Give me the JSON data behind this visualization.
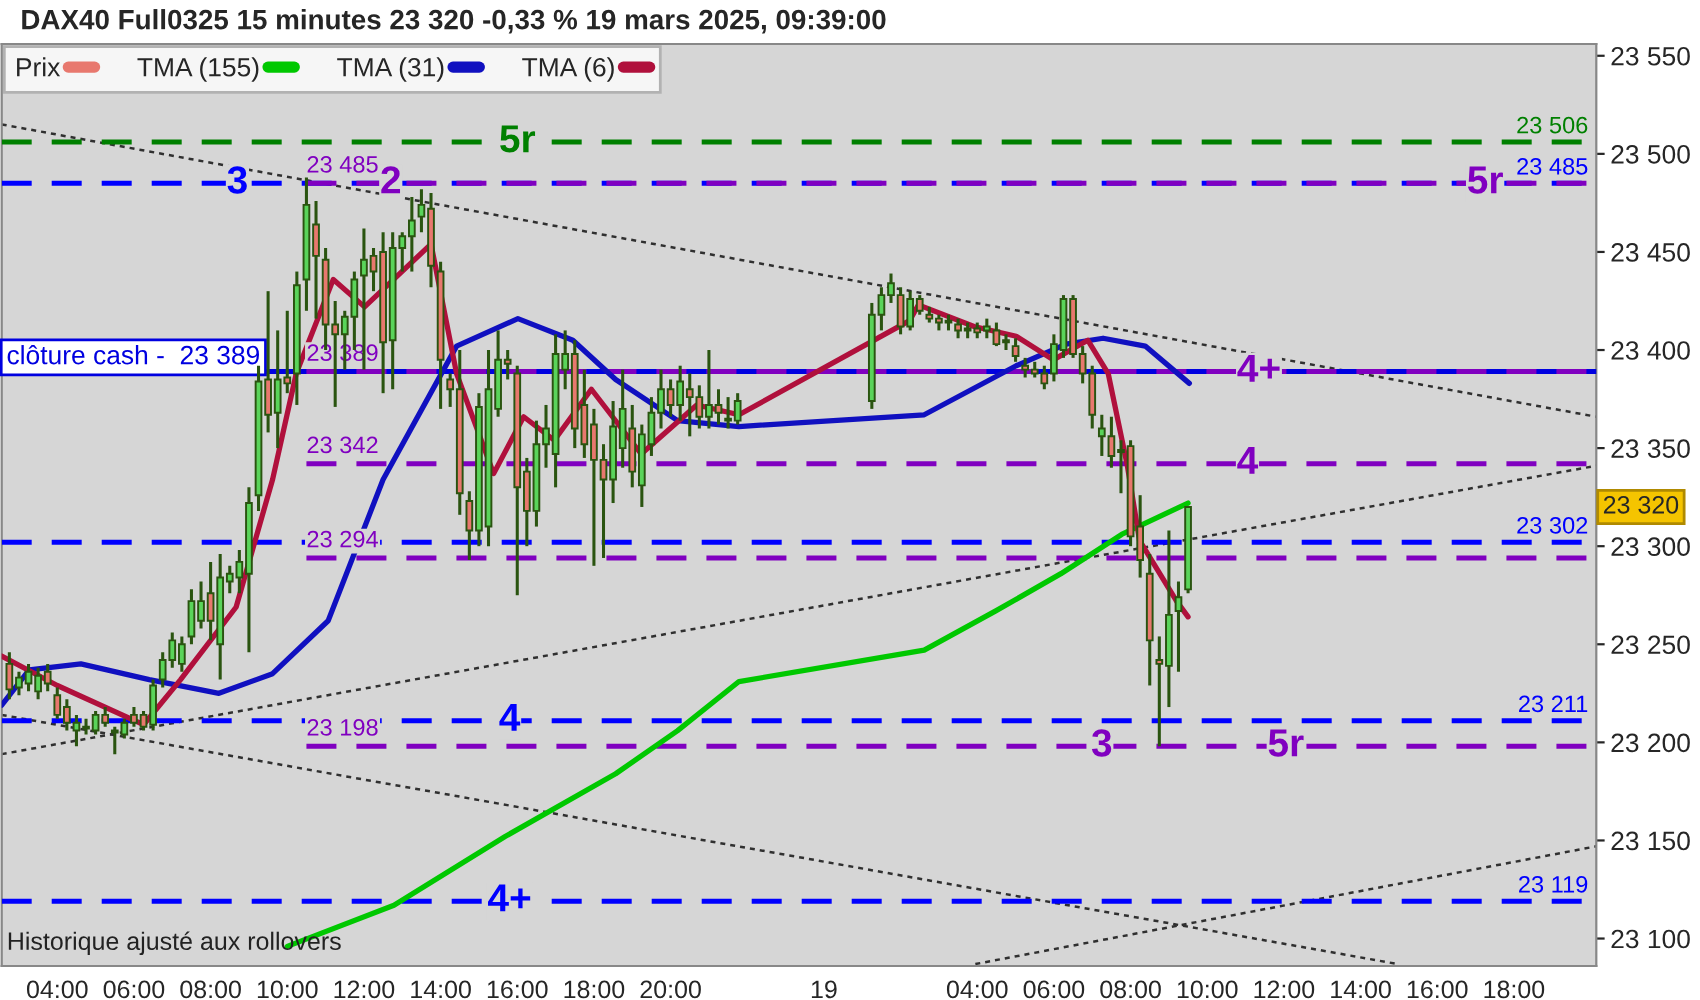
{
  "chart_data": {
    "type": "candlestick",
    "title": "DAX40 Full0325 15 minutes 23 320 -0,33 % 19 mars 2025, 09:39:00",
    "xlim": [
      "2025-03-18T02:33",
      "2025-03-19T20:09"
    ],
    "ylim": [
      23086,
      23556
    ],
    "xticks": [
      {
        "value": "2025-03-18T04:00",
        "label": "04:00"
      },
      {
        "value": "2025-03-18T06:00",
        "label": "06:00"
      },
      {
        "value": "2025-03-18T08:00",
        "label": "08:00"
      },
      {
        "value": "2025-03-18T10:00",
        "label": "10:00"
      },
      {
        "value": "2025-03-18T12:00",
        "label": "12:00"
      },
      {
        "value": "2025-03-18T14:00",
        "label": "14:00"
      },
      {
        "value": "2025-03-18T16:00",
        "label": "16:00"
      },
      {
        "value": "2025-03-18T18:00",
        "label": "18:00"
      },
      {
        "value": "2025-03-18T20:00",
        "label": "20:00"
      },
      {
        "value": "2025-03-19T00:00",
        "label": "19"
      },
      {
        "value": "2025-03-19T04:00",
        "label": "04:00"
      },
      {
        "value": "2025-03-19T06:00",
        "label": "06:00"
      },
      {
        "value": "2025-03-19T08:00",
        "label": "08:00"
      },
      {
        "value": "2025-03-19T10:00",
        "label": "10:00"
      },
      {
        "value": "2025-03-19T12:00",
        "label": "12:00"
      },
      {
        "value": "2025-03-19T14:00",
        "label": "14:00"
      },
      {
        "value": "2025-03-19T16:00",
        "label": "16:00"
      },
      {
        "value": "2025-03-19T18:00",
        "label": "18:00"
      }
    ],
    "yticks": [
      {
        "value": 23100,
        "label": "23 100"
      },
      {
        "value": 23150,
        "label": "23 150"
      },
      {
        "value": 23200,
        "label": "23 200"
      },
      {
        "value": 23250,
        "label": "23 250"
      },
      {
        "value": 23300,
        "label": "23 300"
      },
      {
        "value": 23350,
        "label": "23 350"
      },
      {
        "value": 23400,
        "label": "23 400"
      },
      {
        "value": 23450,
        "label": "23 450"
      },
      {
        "value": 23500,
        "label": "23 500"
      },
      {
        "value": 23550,
        "label": "23 550"
      }
    ],
    "grid": false,
    "legend": "top left",
    "series": [
      {
        "name": "Prix",
        "type": "candlestick",
        "x": [
          "2025-03-18T02:45",
          "2025-03-18T03:00",
          "2025-03-18T03:15",
          "2025-03-18T03:30",
          "2025-03-18T03:45",
          "2025-03-18T04:00",
          "2025-03-18T04:15",
          "2025-03-18T04:30",
          "2025-03-18T04:45",
          "2025-03-18T05:00",
          "2025-03-18T05:15",
          "2025-03-18T05:30",
          "2025-03-18T05:45",
          "2025-03-18T06:00",
          "2025-03-18T06:15",
          "2025-03-18T06:30",
          "2025-03-18T06:45",
          "2025-03-18T07:00",
          "2025-03-18T07:15",
          "2025-03-18T07:30",
          "2025-03-18T07:45",
          "2025-03-18T08:00",
          "2025-03-18T08:15",
          "2025-03-18T08:30",
          "2025-03-18T08:45",
          "2025-03-18T09:00",
          "2025-03-18T09:15",
          "2025-03-18T09:30",
          "2025-03-18T09:45",
          "2025-03-18T10:00",
          "2025-03-18T10:15",
          "2025-03-18T10:30",
          "2025-03-18T10:45",
          "2025-03-18T11:00",
          "2025-03-18T11:15",
          "2025-03-18T11:30",
          "2025-03-18T11:45",
          "2025-03-18T12:00",
          "2025-03-18T12:15",
          "2025-03-18T12:30",
          "2025-03-18T12:45",
          "2025-03-18T13:00",
          "2025-03-18T13:15",
          "2025-03-18T13:30",
          "2025-03-18T13:45",
          "2025-03-18T14:00",
          "2025-03-18T14:15",
          "2025-03-18T14:30",
          "2025-03-18T14:45",
          "2025-03-18T15:00",
          "2025-03-18T15:15",
          "2025-03-18T15:30",
          "2025-03-18T15:45",
          "2025-03-18T16:00",
          "2025-03-18T16:15",
          "2025-03-18T16:30",
          "2025-03-18T16:45",
          "2025-03-18T17:00",
          "2025-03-18T17:15",
          "2025-03-18T17:30",
          "2025-03-18T17:45",
          "2025-03-18T18:00",
          "2025-03-18T18:15",
          "2025-03-18T18:30",
          "2025-03-18T18:45",
          "2025-03-18T19:00",
          "2025-03-18T19:15",
          "2025-03-18T19:30",
          "2025-03-18T19:45",
          "2025-03-18T20:00",
          "2025-03-18T20:15",
          "2025-03-18T20:30",
          "2025-03-18T20:45",
          "2025-03-18T21:00",
          "2025-03-18T21:15",
          "2025-03-18T21:30",
          "2025-03-18T21:45",
          "2025-03-19T01:15",
          "2025-03-19T01:30",
          "2025-03-19T01:45",
          "2025-03-19T02:00",
          "2025-03-19T02:15",
          "2025-03-19T02:30",
          "2025-03-19T02:45",
          "2025-03-19T03:00",
          "2025-03-19T03:15",
          "2025-03-19T03:30",
          "2025-03-19T03:45",
          "2025-03-19T04:00",
          "2025-03-19T04:15",
          "2025-03-19T04:30",
          "2025-03-19T04:45",
          "2025-03-19T05:00",
          "2025-03-19T05:15",
          "2025-03-19T05:30",
          "2025-03-19T05:45",
          "2025-03-19T06:00",
          "2025-03-19T06:15",
          "2025-03-19T06:30",
          "2025-03-19T06:45",
          "2025-03-19T07:00",
          "2025-03-19T07:15",
          "2025-03-19T07:30",
          "2025-03-19T07:45",
          "2025-03-19T08:00",
          "2025-03-19T08:15",
          "2025-03-19T08:30",
          "2025-03-19T08:45",
          "2025-03-19T09:00",
          "2025-03-19T09:15",
          "2025-03-19T09:30"
        ],
        "ohlc": [
          [
            23240,
            23246,
            23222,
            23227
          ],
          [
            23228,
            23236,
            23224,
            23233
          ],
          [
            23230,
            23240,
            23226,
            23236
          ],
          [
            23226,
            23238,
            23222,
            23234
          ],
          [
            23236,
            23240,
            23226,
            23230
          ],
          [
            23224,
            23228,
            23212,
            23214
          ],
          [
            23218,
            23222,
            23206,
            23210
          ],
          [
            23206,
            23214,
            23198,
            23210
          ],
          [
            23208,
            23212,
            23204,
            23207
          ],
          [
            23206,
            23216,
            23204,
            23214
          ],
          [
            23214,
            23218,
            23208,
            23210
          ],
          [
            23206,
            23208,
            23194,
            23205
          ],
          [
            23204,
            23212,
            23202,
            23210
          ],
          [
            23214,
            23218,
            23208,
            23210
          ],
          [
            23214,
            23216,
            23206,
            23208
          ],
          [
            23209,
            23232,
            23206,
            23229
          ],
          [
            23232,
            23246,
            23228,
            23242
          ],
          [
            23242,
            23256,
            23238,
            23252
          ],
          [
            23240,
            23254,
            23236,
            23250
          ],
          [
            23254,
            23278,
            23250,
            23272
          ],
          [
            23262,
            23282,
            23258,
            23272
          ],
          [
            23276,
            23292,
            23252,
            23262
          ],
          [
            23250,
            23296,
            23232,
            23284
          ],
          [
            23282,
            23290,
            23276,
            23286
          ],
          [
            23284,
            23298,
            23276,
            23292
          ],
          [
            23286,
            23330,
            23246,
            23322
          ],
          [
            23326,
            23392,
            23318,
            23384
          ],
          [
            23385,
            23430,
            23358,
            23367
          ],
          [
            23368,
            23410,
            23350,
            23385
          ],
          [
            23386,
            23420,
            23378,
            23383
          ],
          [
            23388,
            23440,
            23372,
            23433
          ],
          [
            23436,
            23488,
            23420,
            23474
          ],
          [
            23464,
            23476,
            23416,
            23448
          ],
          [
            23446,
            23452,
            23400,
            23413
          ],
          [
            23413,
            23425,
            23371,
            23408
          ],
          [
            23408,
            23420,
            23390,
            23417
          ],
          [
            23417,
            23440,
            23400,
            23436
          ],
          [
            23438,
            23462,
            23390,
            23446
          ],
          [
            23448,
            23452,
            23430,
            23440
          ],
          [
            23450,
            23460,
            23378,
            23404
          ],
          [
            23405,
            23460,
            23380,
            23452
          ],
          [
            23452,
            23460,
            23440,
            23458
          ],
          [
            23458,
            23478,
            23440,
            23466
          ],
          [
            23468,
            23482,
            23460,
            23474
          ],
          [
            23472,
            23480,
            23432,
            23443
          ],
          [
            23440,
            23445,
            23370,
            23395
          ],
          [
            23385,
            23388,
            23371,
            23380
          ],
          [
            23380,
            23400,
            23316,
            23327
          ],
          [
            23323,
            23328,
            23293,
            23308
          ],
          [
            23308,
            23378,
            23300,
            23371
          ],
          [
            23310,
            23400,
            23300,
            23380
          ],
          [
            23370,
            23410,
            23366,
            23395
          ],
          [
            23395,
            23400,
            23385,
            23393
          ],
          [
            23388,
            23392,
            23275,
            23330
          ],
          [
            23338,
            23345,
            23300,
            23318
          ],
          [
            23318,
            23364,
            23310,
            23352
          ],
          [
            23352,
            23372,
            23340,
            23360
          ],
          [
            23347,
            23408,
            23330,
            23398
          ],
          [
            23390,
            23410,
            23380,
            23398
          ],
          [
            23398,
            23405,
            23350,
            23360
          ],
          [
            23372,
            23390,
            23345,
            23352
          ],
          [
            23362,
            23370,
            23290,
            23344
          ],
          [
            23344,
            23352,
            23294,
            23334
          ],
          [
            23334,
            23374,
            23322,
            23361
          ],
          [
            23350,
            23390,
            23340,
            23370
          ],
          [
            23360,
            23372,
            23330,
            23338
          ],
          [
            23331,
            23362,
            23320,
            23357
          ],
          [
            23352,
            23376,
            23346,
            23368
          ],
          [
            23368,
            23390,
            23360,
            23380
          ],
          [
            23380,
            23385,
            23366,
            23372
          ],
          [
            23372,
            23392,
            23364,
            23384
          ],
          [
            23380,
            23388,
            23356,
            23376
          ],
          [
            23376,
            23382,
            23360,
            23366
          ],
          [
            23366,
            23400,
            23360,
            23372
          ],
          [
            23372,
            23380,
            23362,
            23368
          ],
          [
            23364,
            23376,
            23360,
            23365
          ],
          [
            23364,
            23378,
            23362,
            23374
          ],
          [
            23374,
            23424,
            23370,
            23418
          ],
          [
            23418,
            23432,
            23410,
            23428
          ],
          [
            23428,
            23439,
            23424,
            23434
          ],
          [
            23428,
            23432,
            23408,
            23412
          ],
          [
            23412,
            23430,
            23410,
            23426
          ],
          [
            23426,
            23428,
            23418,
            23420
          ],
          [
            23418,
            23422,
            23414,
            23416
          ],
          [
            23416,
            23418,
            23410,
            23414
          ],
          [
            23414,
            23418,
            23410,
            23415
          ],
          [
            23413,
            23416,
            23406,
            23410
          ],
          [
            23410,
            23414,
            23406,
            23411
          ],
          [
            23411,
            23414,
            23406,
            23409
          ],
          [
            23410,
            23416,
            23406,
            23412
          ],
          [
            23410,
            23414,
            23402,
            23403
          ],
          [
            23404,
            23408,
            23400,
            23405
          ],
          [
            23402,
            23406,
            23394,
            23397
          ],
          [
            23392,
            23396,
            23386,
            23390
          ],
          [
            23390,
            23394,
            23386,
            23388
          ],
          [
            23388,
            23392,
            23380,
            23383
          ],
          [
            23388,
            23408,
            23384,
            23403
          ],
          [
            23400,
            23428,
            23396,
            23426
          ],
          [
            23426,
            23428,
            23396,
            23398
          ],
          [
            23398,
            23402,
            23383,
            23388
          ],
          [
            23388,
            23392,
            23360,
            23367
          ],
          [
            23356,
            23367,
            23346,
            23360
          ],
          [
            23356,
            23366,
            23340,
            23346
          ],
          [
            23349,
            23354,
            23327,
            23348
          ],
          [
            23351,
            23354,
            23300,
            23305
          ],
          [
            23310,
            23326,
            23284,
            23293
          ],
          [
            23286,
            23296,
            23229,
            23252
          ],
          [
            23242,
            23254,
            23198,
            23240
          ],
          [
            23239,
            23308,
            23218,
            23265
          ],
          [
            23267,
            23282,
            23236,
            23274
          ],
          [
            23278,
            23320,
            23276,
            23320
          ]
        ],
        "colors": [
          "#e8786e",
          "#5ad45a",
          "#5ad45a",
          "#5ad45a",
          "#e8786e",
          "#e8786e",
          "#e8786e",
          "#5ad45a",
          "#e8786e",
          "#5ad45a",
          "#e8786e",
          "#e8786e",
          "#5ad45a",
          "#e8786e",
          "#e8786e",
          "#5ad45a",
          "#5ad45a",
          "#5ad45a",
          "#5ad45a",
          "#5ad45a",
          "#5ad45a",
          "#e8786e",
          "#5ad45a",
          "#5ad45a",
          "#5ad45a",
          "#5ad45a",
          "#5ad45a",
          "#e8786e",
          "#5ad45a",
          "#e8786e",
          "#5ad45a",
          "#5ad45a",
          "#e8786e",
          "#e8786e",
          "#e8786e",
          "#5ad45a",
          "#5ad45a",
          "#5ad45a",
          "#e8786e",
          "#e8786e",
          "#5ad45a",
          "#5ad45a",
          "#5ad45a",
          "#5ad45a",
          "#e8786e",
          "#e8786e",
          "#e8786e",
          "#e8786e",
          "#e8786e",
          "#5ad45a",
          "#5ad45a",
          "#5ad45a",
          "#e8786e",
          "#e8786e",
          "#e8786e",
          "#5ad45a",
          "#5ad45a",
          "#5ad45a",
          "#5ad45a",
          "#e8786e",
          "#e8786e",
          "#e8786e",
          "#e8786e",
          "#5ad45a",
          "#5ad45a",
          "#e8786e",
          "#5ad45a",
          "#5ad45a",
          "#5ad45a",
          "#e8786e",
          "#5ad45a",
          "#e8786e",
          "#e8786e",
          "#5ad45a",
          "#e8786e",
          "#5ad45a",
          "#5ad45a",
          "#5ad45a",
          "#5ad45a",
          "#5ad45a",
          "#e8786e",
          "#5ad45a",
          "#e8786e",
          "#e8786e",
          "#e8786e",
          "#5ad45a",
          "#e8786e",
          "#5ad45a",
          "#e8786e",
          "#5ad45a",
          "#e8786e",
          "#5ad45a",
          "#e8786e",
          "#e8786e",
          "#e8786e",
          "#e8786e",
          "#5ad45a",
          "#5ad45a",
          "#e8786e",
          "#e8786e",
          "#e8786e",
          "#5ad45a",
          "#e8786e",
          "#e8786e",
          "#e8786e",
          "#e8786e",
          "#e8786e",
          "#e8786e",
          "#5ad45a",
          "#5ad45a",
          "#5ad45a"
        ]
      },
      {
        "name": "TMA (155)",
        "type": "line",
        "color": "#00c800",
        "x": [
          "2025-03-18T10:00",
          "2025-03-18T12:47",
          "2025-03-18T15:41",
          "2025-03-18T18:34",
          "2025-03-18T20:11",
          "2025-03-18T21:47",
          "2025-03-19T02:37",
          "2025-03-19T04:29",
          "2025-03-19T06:11",
          "2025-03-19T07:46",
          "2025-03-19T09:30"
        ],
        "values": [
          23096,
          23117,
          23152,
          23184,
          23206,
          23231,
          23247,
          23267,
          23286,
          23306,
          23322
        ]
      },
      {
        "name": "TMA (31)",
        "type": "line",
        "color": "#1010c0",
        "x": [
          "2025-03-18T02:33",
          "2025-03-18T03:16",
          "2025-03-18T04:37",
          "2025-03-18T06:24",
          "2025-03-18T08:13",
          "2025-03-18T09:37",
          "2025-03-18T11:04",
          "2025-03-18T12:30",
          "2025-03-18T14:25",
          "2025-03-18T16:01",
          "2025-03-18T17:27",
          "2025-03-18T18:34",
          "2025-03-18T20:11",
          "2025-03-18T21:47",
          "2025-03-19T02:37",
          "2025-03-19T05:01",
          "2025-03-19T06:19",
          "2025-03-19T07:17",
          "2025-03-19T08:23",
          "2025-03-19T09:32"
        ],
        "values": [
          23219,
          23237,
          23240,
          23232,
          23225,
          23235,
          23262,
          23334,
          23402,
          23416,
          23405,
          23385,
          23364,
          23361,
          23367,
          23392,
          23403,
          23406,
          23402,
          23383
        ]
      },
      {
        "name": "TMA (6)",
        "type": "line",
        "color": "#b0103c",
        "x": [
          "2025-03-18T02:33",
          "2025-03-18T04:00",
          "2025-03-18T06:15",
          "2025-03-18T07:13",
          "2025-03-18T08:40",
          "2025-03-18T09:37",
          "2025-03-18T10:14",
          "2025-03-18T11:12",
          "2025-03-18T12:01",
          "2025-03-18T13:45",
          "2025-03-18T14:25",
          "2025-03-18T15:23",
          "2025-03-18T16:10",
          "2025-03-18T16:58",
          "2025-03-18T17:56",
          "2025-03-18T19:14",
          "2025-03-18T20:41",
          "2025-03-18T21:47",
          "2025-03-19T02:14",
          "2025-03-19T02:28",
          "2025-03-19T03:55",
          "2025-03-19T05:01",
          "2025-03-19T05:59",
          "2025-03-19T06:53",
          "2025-03-19T07:25",
          "2025-03-19T07:55",
          "2025-03-19T08:14",
          "2025-03-19T09:12",
          "2025-03-19T09:30"
        ],
        "values": [
          23244,
          23229,
          23209,
          23232,
          23269,
          23334,
          23388,
          23436,
          23422,
          23454,
          23388,
          23337,
          23366,
          23354,
          23380,
          23347,
          23372,
          23367,
          23415,
          23423,
          23412,
          23407,
          23395,
          23405,
          23388,
          23341,
          23303,
          23272,
          23264
        ]
      },
      {
        "type": "line",
        "color": "#303030",
        "line_style": "dotted",
        "x": [
          "2025-03-18T02:33",
          "2025-03-19T20:09"
        ],
        "values": [
          23515,
          23366
        ]
      },
      {
        "type": "line",
        "color": "#303030",
        "line_style": "dotted",
        "x": [
          "2025-03-18T02:33",
          "2025-03-19T20:09"
        ],
        "values": [
          23194,
          23341
        ]
      },
      {
        "type": "line",
        "color": "#303030",
        "line_style": "dotted",
        "x": [
          "2025-03-18T02:33",
          "2025-03-19T14:58"
        ],
        "values": [
          23214,
          23087
        ]
      },
      {
        "type": "line",
        "color": "#303030",
        "line_style": "dotted",
        "x": [
          "2025-03-19T03:57",
          "2025-03-19T20:09"
        ],
        "values": [
          23087,
          23147
        ]
      },
      {
        "type": "line",
        "color": "#8000c0",
        "line_style": "dashed",
        "x": [
          "2025-03-18T10:30",
          "2025-03-19T20:09"
        ],
        "values": [
          23485,
          23485
        ],
        "value_labels": [
          "23 485",
          null
        ]
      },
      {
        "type": "line",
        "color": "#8000c0",
        "line_style": "dashed",
        "x": [
          "2025-03-18T10:30",
          "2025-03-19T20:09"
        ],
        "values": [
          23389,
          23389
        ],
        "value_labels": [
          "23 389",
          null
        ]
      },
      {
        "type": "line",
        "color": "#8000c0",
        "line_style": "dashed",
        "x": [
          "2025-03-18T10:30",
          "2025-03-19T20:09"
        ],
        "values": [
          23342,
          23342
        ],
        "value_labels": [
          "23 342",
          null
        ]
      },
      {
        "type": "line",
        "color": "#8000c0",
        "line_style": "dashed",
        "x": [
          "2025-03-18T10:30",
          "2025-03-19T20:09"
        ],
        "values": [
          23294,
          23294
        ],
        "value_labels": [
          "23 294",
          null
        ]
      },
      {
        "type": "line",
        "color": "#8000c0",
        "line_style": "dashed",
        "x": [
          "2025-03-18T10:30",
          "2025-03-19T20:09"
        ],
        "values": [
          23198,
          23198
        ],
        "value_labels": [
          "23 198",
          null
        ]
      }
    ],
    "ref_lines": [
      {
        "axis": "y",
        "value": 23506,
        "label": "23 506",
        "color": "#008000",
        "line_style": "dashed"
      },
      {
        "axis": "y",
        "value": 23485,
        "label": "23 485",
        "color": "#0000ff",
        "line_style": "dashed"
      },
      {
        "axis": "y",
        "value": 23389,
        "label": "clôture cash -  23 389",
        "color": "#0000e0",
        "line_style": "solid"
      },
      {
        "axis": "y",
        "value": 23302,
        "label": "23 302",
        "color": "#0000ff",
        "line_style": "dashed"
      },
      {
        "axis": "y",
        "value": 23211,
        "label": "23 211",
        "color": "#0000ff",
        "line_style": "dashed"
      },
      {
        "axis": "y",
        "value": 23119,
        "label": "23 119",
        "color": "#0000ff",
        "line_style": "dashed"
      }
    ],
    "annotations": [
      {
        "text": "5r",
        "x": "2025-03-18T16:00",
        "y": 23506
      },
      {
        "text": "3",
        "x": "2025-03-18T08:42",
        "y": 23485
      },
      {
        "text": "2",
        "x": "2025-03-18T12:42",
        "y": 23485
      },
      {
        "text": "5r",
        "x": "2025-03-19T17:15",
        "y": 23485
      },
      {
        "text": "4+",
        "x": "2025-03-19T11:21",
        "y": 23389
      },
      {
        "text": "4",
        "x": "2025-03-19T11:03",
        "y": 23342
      },
      {
        "text": "4",
        "x": "2025-03-18T15:48",
        "y": 23211
      },
      {
        "text": "3",
        "x": "2025-03-19T07:15",
        "y": 23198
      },
      {
        "text": "5r",
        "x": "2025-03-19T12:03",
        "y": 23198
      },
      {
        "text": "4+",
        "x": "2025-03-18T15:48",
        "y": 23119
      },
      {
        "text": "23 320",
        "y": 23320
      },
      "Historique ajusté aux rollovers"
    ]
  }
}
